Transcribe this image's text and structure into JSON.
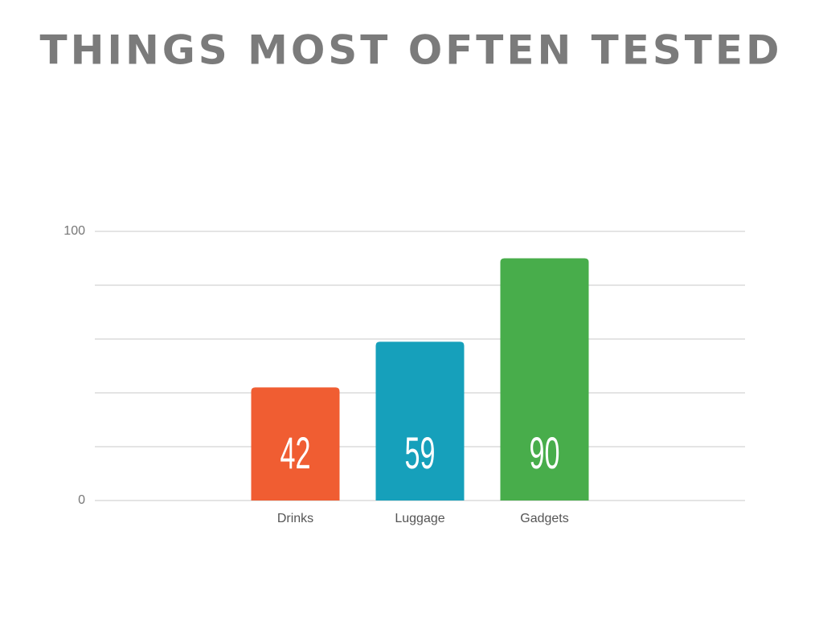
{
  "chart_data": {
    "type": "bar",
    "title": "THINGS MOST OFTEN TESTED",
    "categories": [
      "Drinks",
      "Luggage",
      "Gadgets"
    ],
    "values": [
      42,
      59,
      90
    ],
    "colors": [
      "#f05d32",
      "#16a0bb",
      "#48ad4b"
    ],
    "ylim": [
      0,
      100
    ],
    "yticks": [
      0,
      100
    ],
    "ygrid": [
      0,
      20,
      40,
      60,
      80,
      100
    ],
    "grid": true
  }
}
